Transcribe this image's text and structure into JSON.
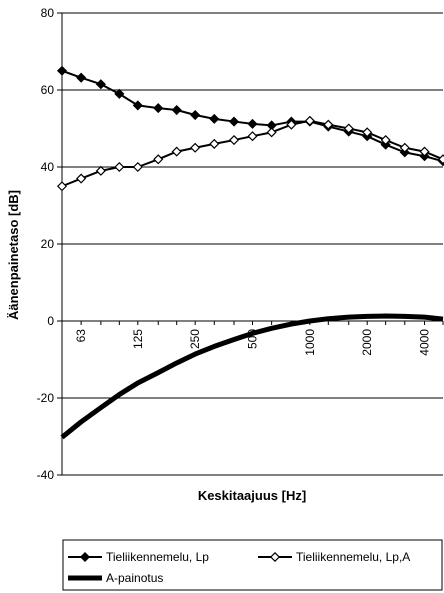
{
  "chart_data": {
    "type": "line",
    "xlabel": "Keskitaajuus [Hz]",
    "ylabel": "Äänenpainetaso [dB]",
    "ylim": [
      -40,
      80
    ],
    "yticks": [
      -40,
      -20,
      0,
      20,
      40,
      60,
      80
    ],
    "grid": "horizontal",
    "legend_position": "bottom",
    "x": [
      50,
      63,
      80,
      100,
      125,
      160,
      200,
      250,
      315,
      400,
      500,
      630,
      800,
      1000,
      1250,
      1600,
      2000,
      2500,
      3150,
      4000,
      5000
    ],
    "x_tick_labels": [
      "63",
      "125",
      "250",
      "500",
      "1000",
      "2000",
      "4000"
    ],
    "series": [
      {
        "name": "Tieliikennemelu, Lp",
        "marker": "filled-diamond",
        "values": [
          65,
          63.2,
          61.5,
          59,
          56,
          55.3,
          54.8,
          53.5,
          52.5,
          51.8,
          51.2,
          50.8,
          51.8,
          51.8,
          50.5,
          49.2,
          48,
          45.8,
          43.8,
          42.8,
          41.5
        ]
      },
      {
        "name": "Tieliikennemelu, Lp,A",
        "marker": "open-diamond",
        "values": [
          35,
          37,
          39,
          40,
          40,
          42,
          44,
          45,
          46,
          47,
          48,
          49,
          51,
          52,
          51,
          50,
          49,
          47,
          45,
          44,
          42
        ]
      },
      {
        "name": "A-painotus",
        "marker": "none",
        "values": [
          -30.2,
          -26.2,
          -22.5,
          -19.1,
          -16.1,
          -13.4,
          -10.9,
          -8.6,
          -6.6,
          -4.8,
          -3.2,
          -1.9,
          -0.8,
          0,
          0.6,
          1,
          1.2,
          1.3,
          1.2,
          1,
          0.5
        ]
      }
    ]
  },
  "colors": {
    "line": "#000000",
    "grid": "#000000",
    "background": "#ffffff"
  }
}
